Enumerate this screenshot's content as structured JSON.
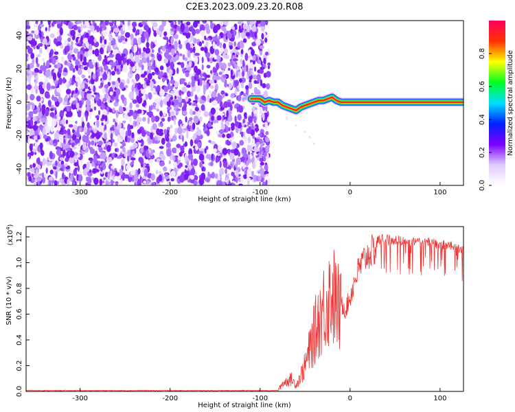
{
  "title": "C2E3.2023.009.23.20.R08",
  "colors": {
    "spectrogram_noise": "#7a1cf0",
    "signal_core": "#ff2020",
    "snr_line": "#ee3333",
    "axis": "#000000"
  },
  "chart_data": [
    {
      "type": "heatmap",
      "xlabel": "Height of straight line (km)",
      "ylabel": "Frequency (Hz)",
      "xlim": [
        -360,
        126
      ],
      "ylim": [
        -50,
        49
      ],
      "xticks": [
        -300,
        -200,
        -100,
        0,
        100
      ],
      "yticks": [
        -40,
        -20,
        0,
        20,
        40
      ],
      "noise_region_x": [
        -360,
        -90
      ],
      "signal_track": {
        "x": [
          -110,
          -100,
          -95,
          -90,
          -85,
          -80,
          -75,
          -70,
          -65,
          -60,
          -55,
          -50,
          -45,
          -40,
          -35,
          -30,
          -25,
          -20,
          -15,
          -10,
          -5,
          0,
          125
        ],
        "frequency": [
          2,
          2,
          0,
          1,
          0,
          0,
          -2,
          -3,
          -4,
          -5,
          -3,
          -2,
          -1,
          0,
          1,
          1,
          2,
          3,
          1,
          0,
          0,
          0,
          0
        ]
      },
      "faint_tail": {
        "x": [
          -70,
          -60,
          -50,
          -45,
          -40
        ],
        "frequency": [
          -10,
          -14,
          -18,
          -21,
          -25
        ]
      },
      "colorbar": {
        "label": "Normalized spectral amplitude",
        "range": [
          0,
          1
        ],
        "ticks": [
          "0.0",
          "0.2",
          "0.4",
          "0.6",
          "0.8"
        ],
        "stops": [
          "#ffffff",
          "#e0ccff",
          "#7a00ff",
          "#0020ff",
          "#00e0ff",
          "#00ff20",
          "#ffff00",
          "#ff3000",
          "#ff0060"
        ]
      }
    },
    {
      "type": "line",
      "xlabel": "Height of straight line (km)",
      "ylabel": "SNR (10 * v/v)",
      "scale_label": "(x10",
      "scale_exponent": "4",
      "scale_close": ")",
      "xlim": [
        -360,
        126
      ],
      "ylim": [
        0,
        1.28
      ],
      "xticks": [
        -300,
        -200,
        -100,
        0,
        100
      ],
      "yticks": [
        "0.0",
        "0.2",
        "0.4",
        "0.6",
        "0.8",
        "1.0",
        "1.2"
      ],
      "series": [
        {
          "x": [
            -360,
            -300,
            -200,
            -100,
            -80,
            -75,
            -70,
            -65,
            -60,
            -55,
            -50,
            -45,
            -40,
            -35,
            -30,
            -25,
            -20,
            -15,
            -10,
            -5,
            0,
            5,
            10,
            15,
            20,
            25,
            30,
            40,
            50,
            60,
            70,
            80,
            90,
            100,
            110,
            120,
            126
          ],
          "values": [
            0.005,
            0.005,
            0.005,
            0.005,
            0.01,
            0.08,
            0.1,
            0.12,
            0.06,
            0.15,
            0.25,
            0.4,
            0.55,
            0.7,
            0.8,
            0.9,
            0.95,
            0.85,
            0.75,
            0.7,
            0.8,
            0.95,
            1.05,
            1.12,
            1.17,
            1.2,
            1.22,
            1.22,
            1.21,
            1.21,
            1.2,
            1.2,
            1.19,
            1.18,
            1.17,
            1.15,
            1.13
          ]
        }
      ]
    }
  ]
}
